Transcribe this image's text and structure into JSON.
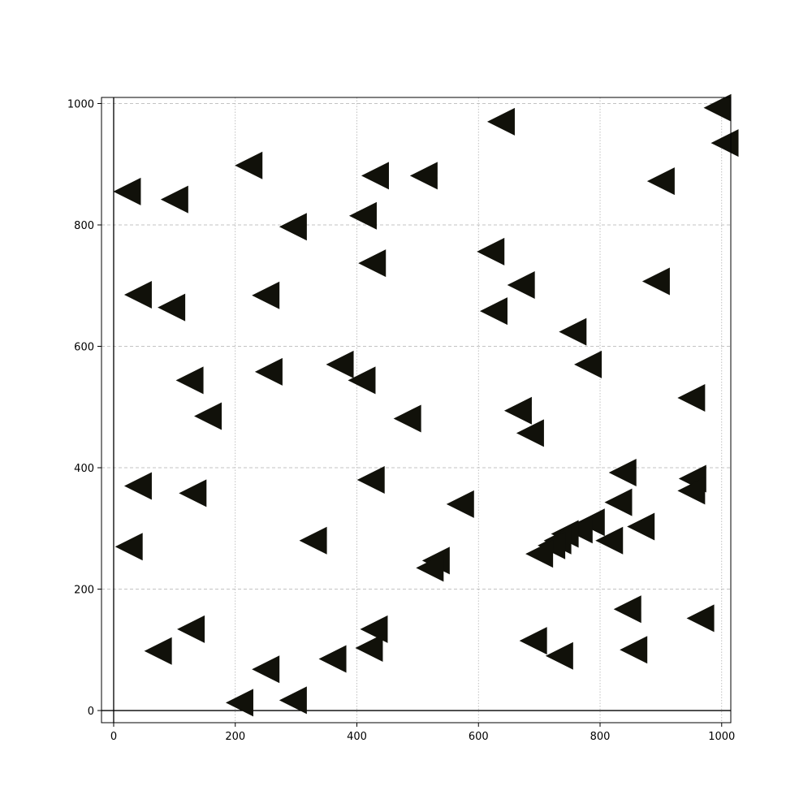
{
  "chart_data": {
    "type": "scatter",
    "title": "",
    "xlabel": "",
    "ylabel": "",
    "xlim": [
      -20,
      1015
    ],
    "ylim": [
      -20,
      1010
    ],
    "xticks": [
      0,
      200,
      400,
      600,
      800,
      1000
    ],
    "yticks": [
      0,
      200,
      400,
      600,
      800,
      1000
    ],
    "x_grid_major": [],
    "x_grid_minor": [
      200,
      400,
      600,
      800,
      1000
    ],
    "y_grid_major": [
      200,
      400,
      600,
      800,
      1000
    ],
    "y_grid_minor": [],
    "zero_lines": {
      "x": 0,
      "y": 0
    },
    "grid": true,
    "legend": "none",
    "marker": "triangle-left",
    "marker_color": "#11110a",
    "points": [
      {
        "x": 993,
        "y": 993
      },
      {
        "x": 1005,
        "y": 935
      },
      {
        "x": 637,
        "y": 970
      },
      {
        "x": 900,
        "y": 872
      },
      {
        "x": 22,
        "y": 855
      },
      {
        "x": 100,
        "y": 842
      },
      {
        "x": 222,
        "y": 898
      },
      {
        "x": 430,
        "y": 881
      },
      {
        "x": 510,
        "y": 881
      },
      {
        "x": 410,
        "y": 815
      },
      {
        "x": 295,
        "y": 797
      },
      {
        "x": 620,
        "y": 756
      },
      {
        "x": 425,
        "y": 737
      },
      {
        "x": 892,
        "y": 707
      },
      {
        "x": 670,
        "y": 701
      },
      {
        "x": 40,
        "y": 685
      },
      {
        "x": 250,
        "y": 684
      },
      {
        "x": 95,
        "y": 664
      },
      {
        "x": 625,
        "y": 658
      },
      {
        "x": 755,
        "y": 624
      },
      {
        "x": 780,
        "y": 570
      },
      {
        "x": 372,
        "y": 570
      },
      {
        "x": 408,
        "y": 544
      },
      {
        "x": 125,
        "y": 544
      },
      {
        "x": 255,
        "y": 558
      },
      {
        "x": 950,
        "y": 515
      },
      {
        "x": 155,
        "y": 485
      },
      {
        "x": 483,
        "y": 481
      },
      {
        "x": 665,
        "y": 494
      },
      {
        "x": 685,
        "y": 457
      },
      {
        "x": 837,
        "y": 392
      },
      {
        "x": 952,
        "y": 382
      },
      {
        "x": 950,
        "y": 362
      },
      {
        "x": 423,
        "y": 380
      },
      {
        "x": 40,
        "y": 370
      },
      {
        "x": 130,
        "y": 358
      },
      {
        "x": 570,
        "y": 340
      },
      {
        "x": 830,
        "y": 343
      },
      {
        "x": 867,
        "y": 303
      },
      {
        "x": 785,
        "y": 310
      },
      {
        "x": 765,
        "y": 298
      },
      {
        "x": 742,
        "y": 291
      },
      {
        "x": 730,
        "y": 280
      },
      {
        "x": 720,
        "y": 272
      },
      {
        "x": 815,
        "y": 280
      },
      {
        "x": 700,
        "y": 258
      },
      {
        "x": 328,
        "y": 280
      },
      {
        "x": 25,
        "y": 270
      },
      {
        "x": 530,
        "y": 247
      },
      {
        "x": 520,
        "y": 235
      },
      {
        "x": 845,
        "y": 167
      },
      {
        "x": 965,
        "y": 152
      },
      {
        "x": 428,
        "y": 134
      },
      {
        "x": 127,
        "y": 134
      },
      {
        "x": 690,
        "y": 115
      },
      {
        "x": 420,
        "y": 103
      },
      {
        "x": 73,
        "y": 98
      },
      {
        "x": 855,
        "y": 100
      },
      {
        "x": 733,
        "y": 90
      },
      {
        "x": 360,
        "y": 85
      },
      {
        "x": 250,
        "y": 68
      },
      {
        "x": 295,
        "y": 17
      },
      {
        "x": 207,
        "y": 13
      }
    ]
  }
}
